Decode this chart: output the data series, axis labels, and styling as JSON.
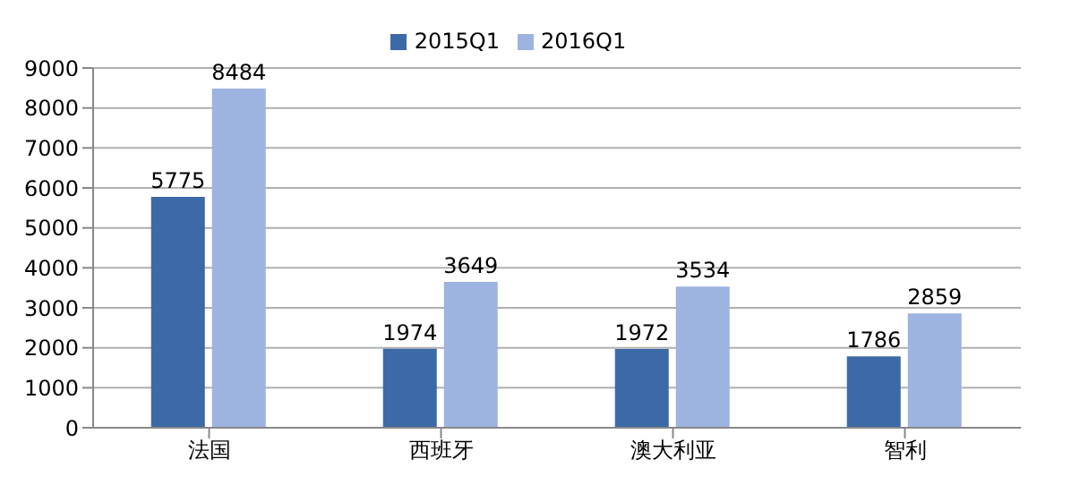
{
  "chart_data": {
    "type": "bar",
    "categories": [
      "法国",
      "西班牙",
      "澳大利亚",
      "智利"
    ],
    "series": [
      {
        "name": "2015Q1",
        "color": "#3b6aa6",
        "values": [
          5775,
          1974,
          1972,
          1786
        ]
      },
      {
        "name": "2016Q1",
        "color": "#9db3e0",
        "values": [
          8484,
          3649,
          3534,
          2859
        ]
      }
    ],
    "ylim": [
      0,
      9000
    ],
    "yticks": [
      0,
      1000,
      2000,
      3000,
      4000,
      5000,
      6000,
      7000,
      8000,
      9000
    ],
    "grid": "y",
    "legend": "top",
    "data_labels": true
  }
}
